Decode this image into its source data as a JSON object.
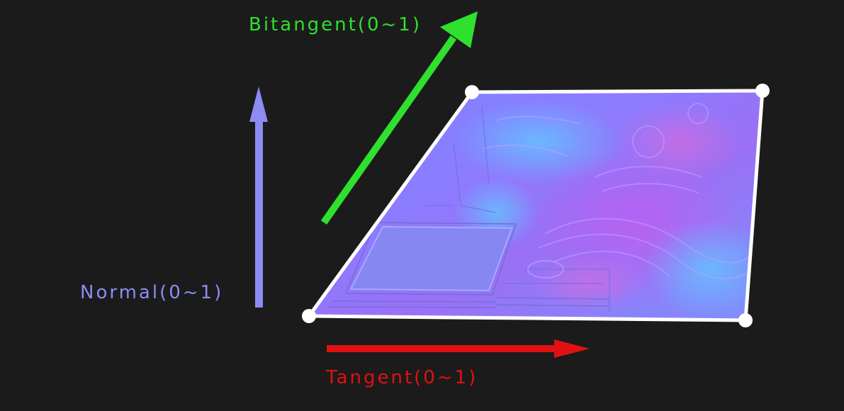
{
  "labels": {
    "bitangent": "Bitangent(0~1)",
    "normal": "Normal(0~1)",
    "tangent": "Tangent(0~1)"
  },
  "colors": {
    "background": "#1b1b1b",
    "bitangent": "#2fe02f",
    "normal": "#8c8cf2",
    "tangent": "#e11111",
    "quad_border": "#ffffff",
    "normal_map_base": "#8080ff"
  },
  "quad": {
    "texture": "normal-map",
    "corner_markers": 4
  }
}
